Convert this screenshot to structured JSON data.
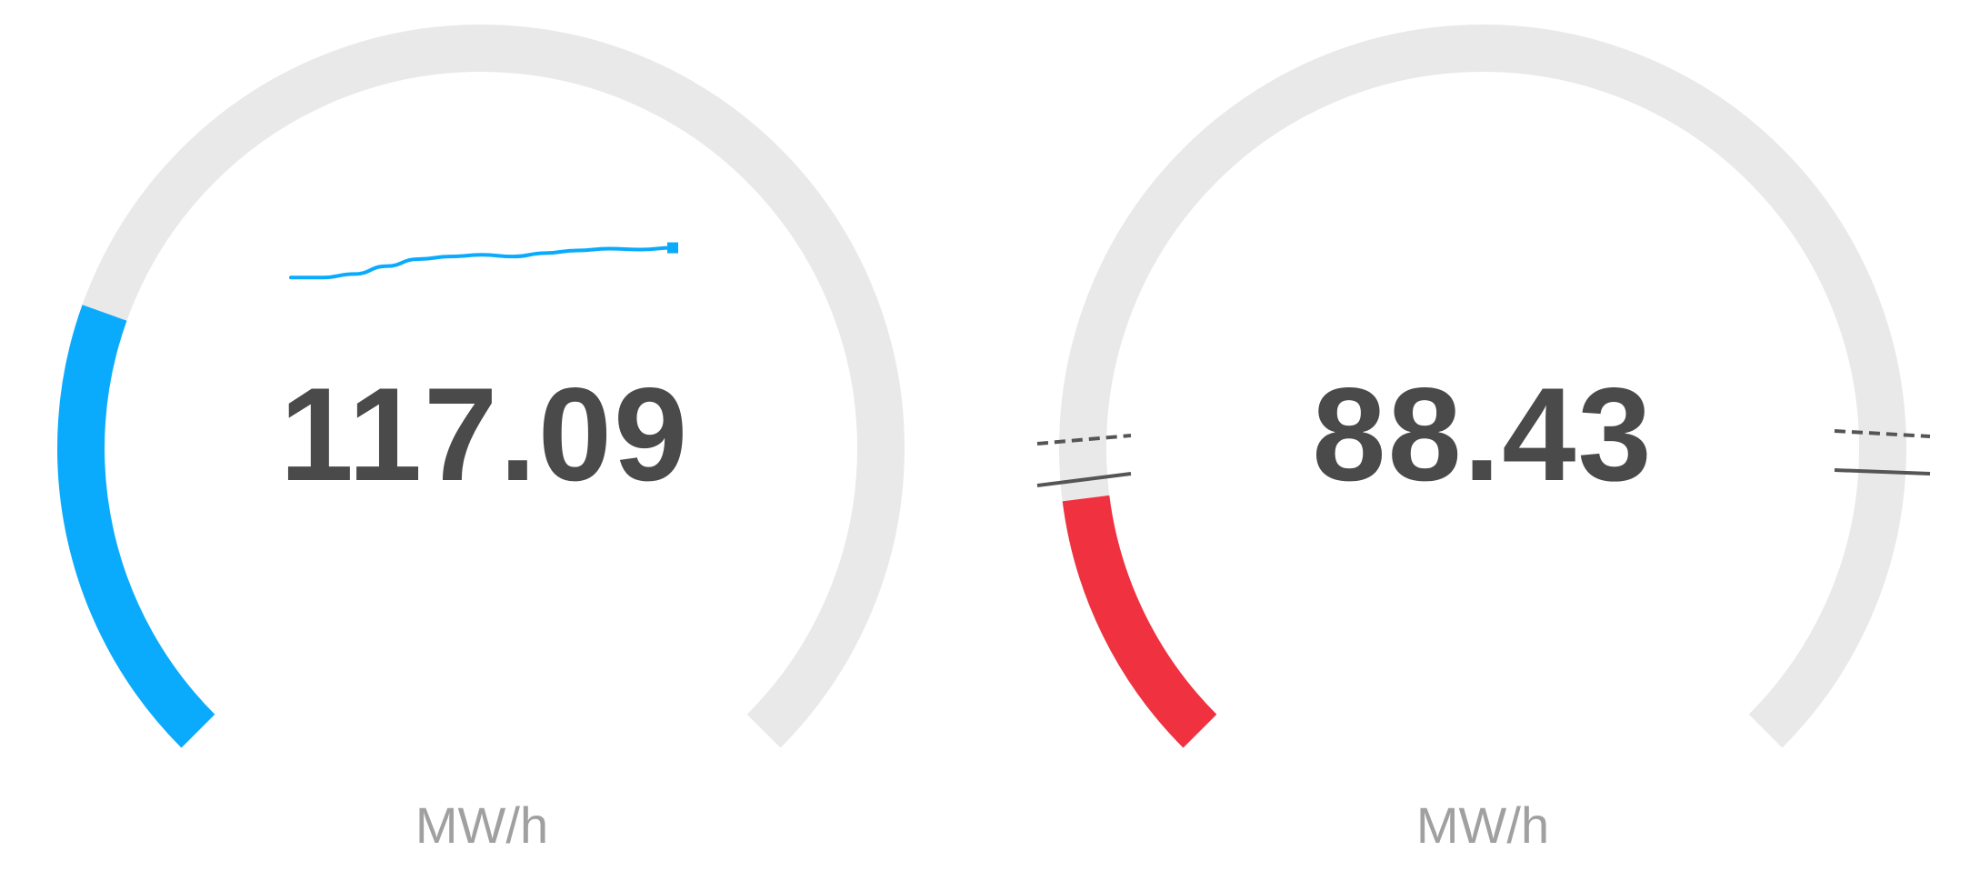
{
  "colors": {
    "track": "#e9e9e9",
    "gauge_1_accent": "#0aabfd",
    "gauge_2_accent": "#f0313f",
    "value_text": "#4a4a4a",
    "unit_text": "#a0a0a0",
    "marker": "#555555"
  },
  "gauges": [
    {
      "id": "gauge-1",
      "value": "117.09",
      "unit": "MW/h",
      "fill_fraction": 0.24,
      "has_sparkline": true,
      "sparkline_values": [
        0.1,
        0.1,
        0.18,
        0.36,
        0.52,
        0.58,
        0.62,
        0.58,
        0.66,
        0.72,
        0.76,
        0.74,
        0.78
      ]
    },
    {
      "id": "gauge-2",
      "value": "88.43",
      "unit": "MW/h",
      "fill_fraction": 0.14,
      "has_threshold_markers": true
    }
  ]
}
